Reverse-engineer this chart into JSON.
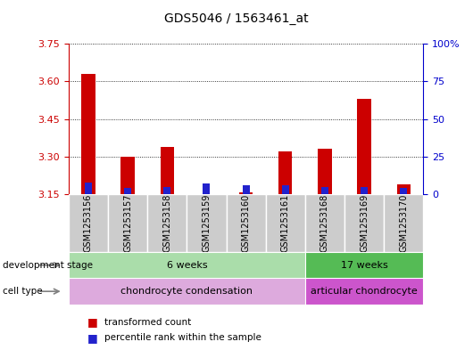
{
  "title": "GDS5046 / 1563461_at",
  "samples": [
    "GSM1253156",
    "GSM1253157",
    "GSM1253158",
    "GSM1253159",
    "GSM1253160",
    "GSM1253161",
    "GSM1253168",
    "GSM1253169",
    "GSM1253170"
  ],
  "transformed_count": [
    3.63,
    3.3,
    3.34,
    3.152,
    3.157,
    3.32,
    3.33,
    3.53,
    3.19
  ],
  "percentile_rank": [
    8,
    4,
    5,
    7,
    6,
    6,
    5,
    5,
    4
  ],
  "baseline": 3.15,
  "ylim_left": [
    3.15,
    3.75
  ],
  "ylim_right": [
    0,
    100
  ],
  "yticks_left": [
    3.15,
    3.3,
    3.45,
    3.6,
    3.75
  ],
  "yticks_right": [
    0,
    25,
    50,
    75,
    100
  ],
  "ytick_labels_right": [
    "0",
    "25",
    "50",
    "75",
    "100%"
  ],
  "bar_color_red": "#cc0000",
  "bar_color_blue": "#2222cc",
  "grid_color": "#000000",
  "development_stage_labels": [
    "6 weeks",
    "17 weeks"
  ],
  "development_stage_color1": "#aaddaa",
  "development_stage_color2": "#55bb55",
  "cell_type_labels": [
    "chondrocyte condensation",
    "articular chondrocyte"
  ],
  "cell_type_color1": "#ddaadd",
  "cell_type_color2": "#cc55cc",
  "legend_labels": [
    "transformed count",
    "percentile rank within the sample"
  ],
  "tick_color_left": "#cc0000",
  "tick_color_right": "#0000cc",
  "bar_width": 0.35,
  "blue_bar_width": 0.18,
  "sample_box_color": "#cccccc",
  "sample_box_edge": "#999999",
  "n_6weeks": 6,
  "n_17weeks": 3
}
